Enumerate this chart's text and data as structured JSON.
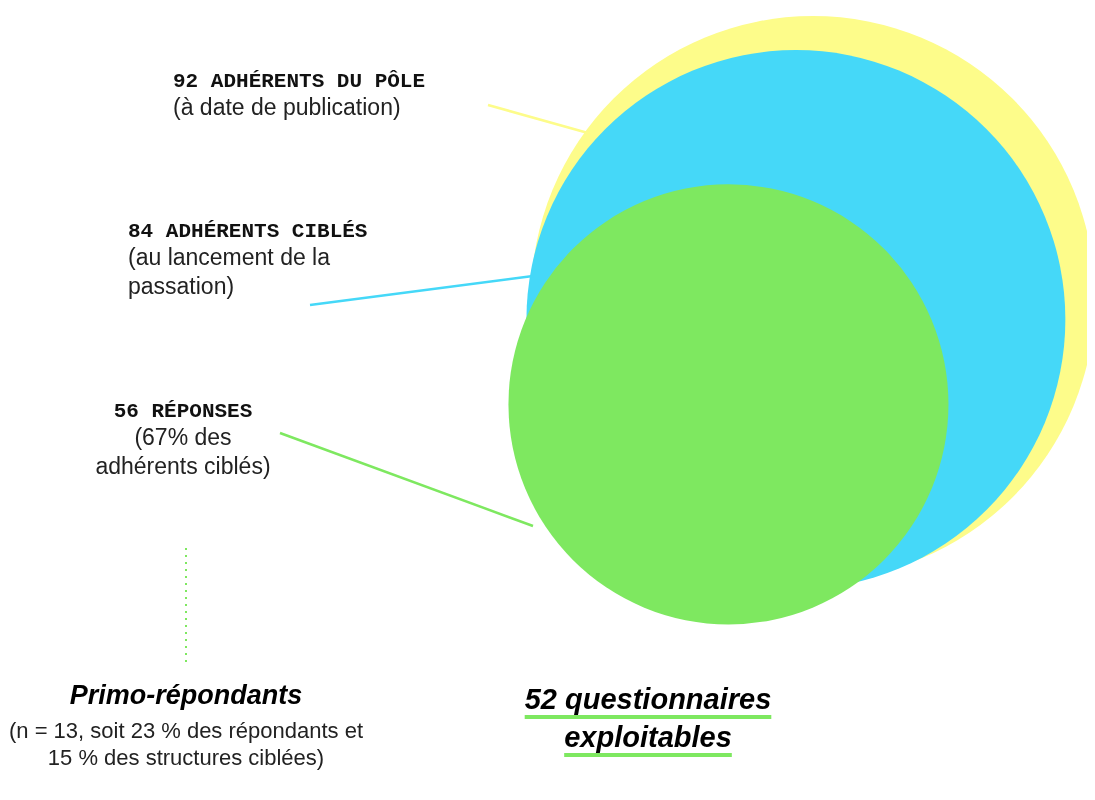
{
  "chart_data": {
    "type": "other",
    "categories": [
      "ADHÉRENTS DU PÔLE",
      "ADHÉRENTS CIBLÉS",
      "RÉPONSES"
    ],
    "values": [
      92,
      84,
      56
    ],
    "data_labels": true,
    "colors": [
      "#fdfc8a",
      "#45d8f8",
      "#7ee860"
    ],
    "annotations": [
      "(à date de publication)",
      "(au lancement de la passation)",
      "(67% des adhérents ciblés)",
      "Primo-répondants",
      "(n = 13, soit 23 % des répondants et 15 % des structures ciblées)",
      "52 questionnaires exploitables"
    ]
  }
}
